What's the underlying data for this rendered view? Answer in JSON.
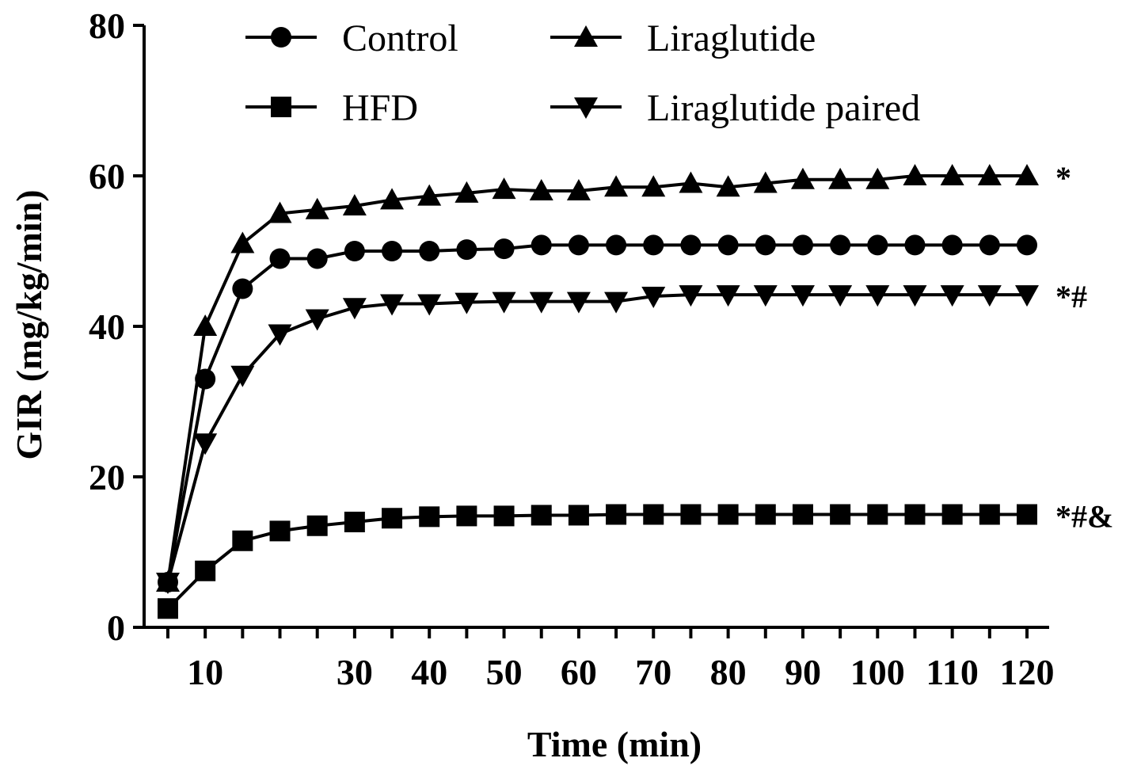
{
  "chart_data": {
    "type": "line",
    "title": "",
    "xlabel": "Time (min)",
    "ylabel": "GIR (mg/kg/min)",
    "ylim": [
      0,
      80
    ],
    "x_tick_labels": [
      "10",
      "30",
      "40",
      "50",
      "60",
      "70",
      "80",
      "90",
      "100",
      "110",
      "120"
    ],
    "y_tick_labels": [
      "0",
      "20",
      "40",
      "60",
      "80"
    ],
    "x": [
      5,
      10,
      15,
      20,
      25,
      30,
      35,
      40,
      45,
      50,
      55,
      60,
      65,
      70,
      75,
      80,
      85,
      90,
      95,
      100,
      105,
      110,
      115,
      120
    ],
    "grid": false,
    "legend_position": "top",
    "series": [
      {
        "name": "Control",
        "marker": "circle",
        "values": [
          6,
          33,
          45,
          49,
          49,
          50,
          50,
          50,
          50.2,
          50.3,
          50.8,
          50.8,
          50.8,
          50.8,
          50.8,
          50.8,
          50.8,
          50.8,
          50.8,
          50.8,
          50.8,
          50.8,
          50.8,
          50.8
        ]
      },
      {
        "name": "HFD",
        "marker": "square",
        "values": [
          2.5,
          7.5,
          11.5,
          12.8,
          13.5,
          14,
          14.5,
          14.7,
          14.8,
          14.8,
          14.9,
          14.9,
          15,
          15,
          15,
          15,
          15,
          15,
          15,
          15,
          15,
          15,
          15,
          15
        ]
      },
      {
        "name": "Liraglutide",
        "marker": "triangle-up",
        "values": [
          6,
          40,
          51,
          55,
          55.5,
          56,
          56.8,
          57.3,
          57.7,
          58.2,
          58,
          58,
          58.5,
          58.5,
          59,
          58.5,
          59,
          59.5,
          59.5,
          59.5,
          60,
          60,
          60,
          60
        ]
      },
      {
        "name": "Liraglutide paired",
        "marker": "triangle-down",
        "values": [
          6,
          24.5,
          33.5,
          39,
          41,
          42.5,
          43,
          43,
          43.2,
          43.3,
          43.3,
          43.3,
          43.3,
          44,
          44.2,
          44.2,
          44.2,
          44.2,
          44.2,
          44.2,
          44.2,
          44.2,
          44.2,
          44.2
        ]
      }
    ],
    "annotations": [
      {
        "series": "Liraglutide",
        "text": "*"
      },
      {
        "series": "Liraglutide paired",
        "text": "*#"
      },
      {
        "series": "HFD",
        "text": "*#&"
      }
    ]
  }
}
